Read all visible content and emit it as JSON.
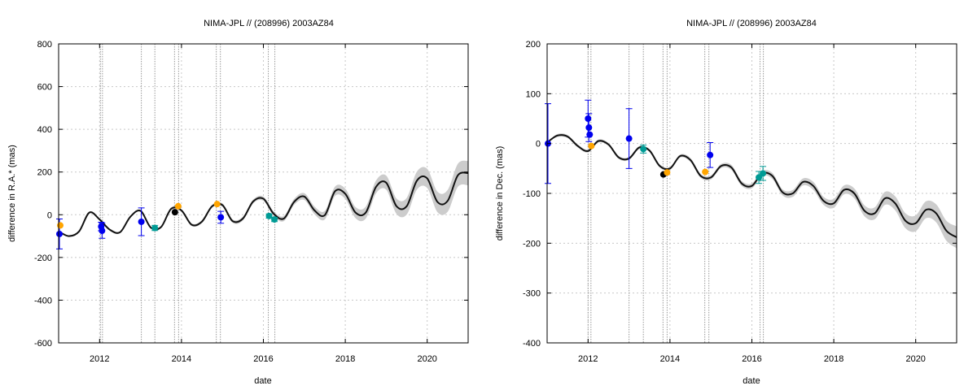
{
  "chart_data": [
    {
      "type": "scatter",
      "title": "NIMA-JPL // (208996) 2003AZ84",
      "xlabel": "date",
      "ylabel": "difference in R.A.* (mas)",
      "xlim": [
        2011.0,
        2021.0
      ],
      "ylim": [
        -600,
        800
      ],
      "xticks": [
        2012,
        2014,
        2016,
        2018,
        2020
      ],
      "yticks": [
        -600,
        -400,
        -200,
        0,
        200,
        400,
        600,
        800
      ],
      "grid": true,
      "legend": "none",
      "colors": {
        "model": "#111111",
        "band": "#cccccc",
        "blue": "#0000ee",
        "orange": "#ffa500",
        "teal": "#009b95",
        "black": "#000000",
        "vline": "#999999"
      },
      "vlines": [
        2012.02,
        2012.07,
        2013.02,
        2013.35,
        2013.83,
        2013.93,
        2014.85,
        2014.95,
        2016.12,
        2016.28
      ],
      "model": {
        "t": [
          2011.0,
          2011.25,
          2011.5,
          2011.75,
          2012.0,
          2012.25,
          2012.5,
          2012.75,
          2013.0,
          2013.25,
          2013.5,
          2013.75,
          2014.0,
          2014.25,
          2014.5,
          2014.75,
          2015.0,
          2015.25,
          2015.5,
          2015.75,
          2016.0,
          2016.25,
          2016.5,
          2016.75,
          2017.0,
          2017.25,
          2017.5,
          2017.75,
          2018.0,
          2018.25,
          2018.5,
          2018.75,
          2019.0,
          2019.25,
          2019.5,
          2019.75,
          2020.0,
          2020.25,
          2020.5,
          2020.75,
          2021.0
        ],
        "y": [
          -78,
          -100,
          -78,
          10,
          -22,
          -70,
          -82,
          -10,
          18,
          -60,
          -58,
          28,
          20,
          -47,
          -32,
          40,
          45,
          -30,
          -18,
          62,
          75,
          5,
          -18,
          60,
          85,
          20,
          -2,
          110,
          98,
          10,
          10,
          130,
          150,
          40,
          40,
          160,
          170,
          60,
          65,
          185,
          195
        ],
        "band": [
          0,
          4,
          4,
          4,
          5,
          5,
          5,
          5,
          5,
          5,
          5,
          6,
          6,
          6,
          7,
          7,
          8,
          8,
          9,
          9,
          10,
          11,
          12,
          14,
          16,
          18,
          20,
          22,
          24,
          26,
          28,
          30,
          33,
          36,
          39,
          42,
          45,
          48,
          51,
          54,
          57
        ]
      },
      "points": [
        {
          "x": 2011.02,
          "y": -90,
          "err": 70,
          "color": "blue"
        },
        {
          "x": 2011.04,
          "y": -50,
          "err": 0,
          "color": "orange"
        },
        {
          "x": 2012.04,
          "y": -55,
          "err": 20,
          "color": "blue"
        },
        {
          "x": 2012.06,
          "y": -75,
          "err": 35,
          "color": "blue"
        },
        {
          "x": 2013.02,
          "y": -33,
          "err": 65,
          "color": "blue"
        },
        {
          "x": 2013.35,
          "y": -62,
          "err": 12,
          "color": "teal"
        },
        {
          "x": 2013.84,
          "y": 12,
          "err": 0,
          "color": "black"
        },
        {
          "x": 2013.92,
          "y": 40,
          "err": 0,
          "color": "orange"
        },
        {
          "x": 2014.87,
          "y": 50,
          "err": 0,
          "color": "orange"
        },
        {
          "x": 2014.96,
          "y": -12,
          "err": 28,
          "color": "blue"
        },
        {
          "x": 2016.14,
          "y": -6,
          "err": 10,
          "color": "teal"
        },
        {
          "x": 2016.27,
          "y": -22,
          "err": 10,
          "color": "teal"
        }
      ]
    },
    {
      "type": "scatter",
      "title": "NIMA-JPL // (208996) 2003AZ84",
      "xlabel": "date",
      "ylabel": "difference in Dec. (mas)",
      "xlim": [
        2011.0,
        2021.0
      ],
      "ylim": [
        -400,
        200
      ],
      "xticks": [
        2012,
        2014,
        2016,
        2018,
        2020
      ],
      "yticks": [
        -400,
        -300,
        -200,
        -100,
        0,
        100,
        200
      ],
      "grid": true,
      "legend": "none",
      "colors": {
        "model": "#111111",
        "band": "#cccccc",
        "blue": "#0000ee",
        "orange": "#ffa500",
        "teal": "#009b95",
        "black": "#000000",
        "vline": "#999999"
      },
      "vlines": [
        2012.0,
        2012.07,
        2013.0,
        2013.35,
        2013.83,
        2013.93,
        2014.85,
        2014.95,
        2016.2,
        2016.28
      ],
      "model": {
        "t": [
          2011.0,
          2011.25,
          2011.5,
          2011.75,
          2012.0,
          2012.25,
          2012.5,
          2012.75,
          2013.0,
          2013.25,
          2013.5,
          2013.75,
          2014.0,
          2014.25,
          2014.5,
          2014.75,
          2015.0,
          2015.25,
          2015.5,
          2015.75,
          2016.0,
          2016.25,
          2016.5,
          2016.75,
          2017.0,
          2017.25,
          2017.5,
          2017.75,
          2018.0,
          2018.25,
          2018.5,
          2018.75,
          2019.0,
          2019.25,
          2019.5,
          2019.75,
          2020.0,
          2020.25,
          2020.5,
          2020.75,
          2021.0
        ],
        "y": [
          2,
          16,
          14,
          -5,
          -15,
          5,
          -2,
          -28,
          -30,
          -8,
          -14,
          -45,
          -50,
          -25,
          -33,
          -65,
          -68,
          -45,
          -48,
          -80,
          -85,
          -60,
          -65,
          -98,
          -100,
          -77,
          -85,
          -115,
          -120,
          -93,
          -100,
          -135,
          -140,
          -110,
          -120,
          -155,
          -160,
          -133,
          -140,
          -175,
          -188
        ],
        "band": [
          0,
          3,
          3,
          3,
          3,
          3,
          3,
          3,
          3,
          3,
          3,
          3,
          3,
          3,
          4,
          4,
          4,
          4,
          5,
          5,
          5,
          5,
          6,
          6,
          7,
          7,
          8,
          8,
          9,
          9,
          10,
          11,
          12,
          13,
          14,
          15,
          16,
          17,
          18,
          20,
          22
        ]
      },
      "points": [
        {
          "x": 2011.02,
          "y": 0,
          "err": 80,
          "color": "blue"
        },
        {
          "x": 2012.0,
          "y": 50,
          "err": 37,
          "color": "blue"
        },
        {
          "x": 2012.02,
          "y": 32,
          "err": 28,
          "color": "blue"
        },
        {
          "x": 2012.04,
          "y": 18,
          "err": 0,
          "color": "blue"
        },
        {
          "x": 2012.08,
          "y": -5,
          "err": 0,
          "color": "orange"
        },
        {
          "x": 2013.0,
          "y": 10,
          "err": 60,
          "color": "blue"
        },
        {
          "x": 2013.35,
          "y": -11,
          "err": 8,
          "color": "teal"
        },
        {
          "x": 2013.84,
          "y": -62,
          "err": 0,
          "color": "black"
        },
        {
          "x": 2013.93,
          "y": -58,
          "err": 0,
          "color": "orange"
        },
        {
          "x": 2014.86,
          "y": -57,
          "err": 0,
          "color": "orange"
        },
        {
          "x": 2014.98,
          "y": -23,
          "err": 25,
          "color": "blue"
        },
        {
          "x": 2016.17,
          "y": -68,
          "err": 12,
          "color": "teal"
        },
        {
          "x": 2016.27,
          "y": -60,
          "err": 14,
          "color": "teal"
        }
      ]
    }
  ]
}
